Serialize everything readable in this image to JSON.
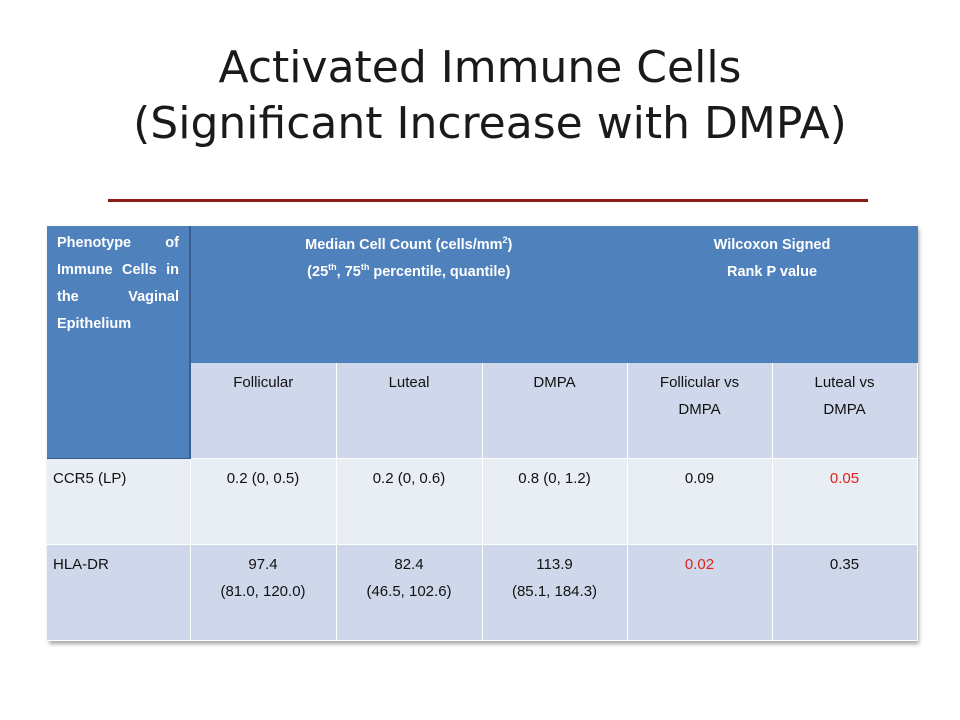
{
  "slide": {
    "title_line1": "Activated Immune Cells",
    "title_line2": "(Significant Increase with DMPA)"
  },
  "table": {
    "header": {
      "phenotype": "Phenotype of Immune Cells in the Vaginal Epithelium",
      "median_pre": "Median Cell Count (cells/mm",
      "median_sup": "2",
      "median_post": ")",
      "percentile_pre": "(25",
      "percentile_sup1": "th",
      "percentile_mid": ", 75",
      "percentile_sup2": "th",
      "percentile_post": " percentile, quantile)",
      "wilcoxon_line1": "Wilcoxon Signed",
      "wilcoxon_line2": "Rank P value"
    },
    "subheaders": {
      "follicular": "Follicular",
      "luteal": "Luteal",
      "dmpa": "DMPA",
      "foll_vs_dmpa_line1": "Follicular vs",
      "foll_vs_dmpa_line2": "DMPA",
      "luteal_vs_dmpa_line1": "Luteal vs",
      "luteal_vs_dmpa_line2": "DMPA"
    },
    "rows": [
      {
        "phenotype": "CCR5 (LP)",
        "follicular": "0.2 (0, 0.5)",
        "luteal": "0.2 (0, 0.6)",
        "dmpa": "0.8 (0, 1.2)",
        "p_foll_dmpa": "0.09",
        "p_luteal_dmpa": "0.05"
      },
      {
        "phenotype": "HLA-DR",
        "follicular_median": "97.4",
        "follicular_range": "(81.0, 120.0)",
        "luteal_median": "82.4",
        "luteal_range": "(46.5, 102.6)",
        "dmpa_median": "113.9",
        "dmpa_range": "(85.1, 184.3)",
        "p_foll_dmpa": "0.02",
        "p_luteal_dmpa": "0.35"
      }
    ],
    "colors": {
      "header_blue": "#4f81bd",
      "significant_red": "#e0201a",
      "title_rule": "#8b1c16"
    }
  }
}
